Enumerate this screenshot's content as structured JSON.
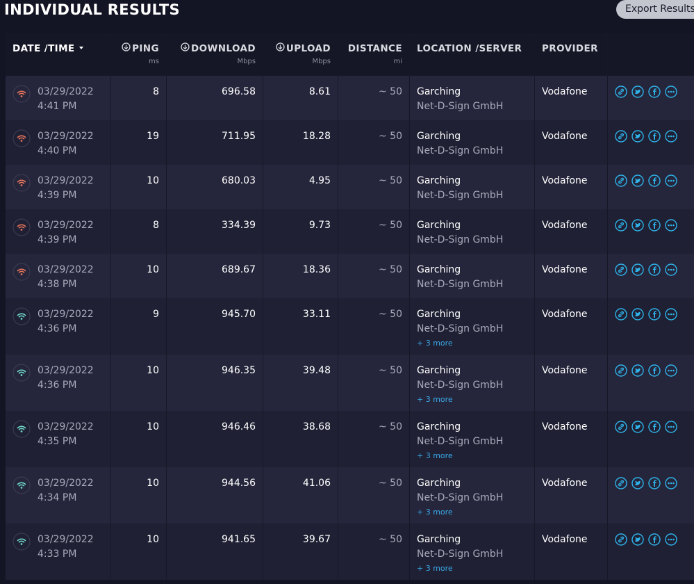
{
  "header": {
    "title": "INDIVIDUAL RESULTS",
    "export_button": "Export Results"
  },
  "table": {
    "columns": [
      {
        "label": "DATE /TIME",
        "unit": null
      },
      {
        "label": "PING",
        "unit": "ms"
      },
      {
        "label": "DOWNLOAD",
        "unit": "Mbps"
      },
      {
        "label": "UPLOAD",
        "unit": "Mbps"
      },
      {
        "label": "DISTANCE",
        "unit": "mi"
      },
      {
        "label": "LOCATION /SERVER",
        "unit": null
      },
      {
        "label": "PROVIDER",
        "unit": null
      }
    ],
    "rows": [
      {
        "date": "03/29/2022",
        "time": "4:41 PM",
        "ping": "8",
        "download": "696.58",
        "upload": "8.61",
        "distance": "~ 50",
        "location": "Garching",
        "server": "Net-D-Sign GmbH",
        "provider": "Vodafone",
        "icon_color": "#e8755c"
      },
      {
        "date": "03/29/2022",
        "time": "4:40 PM",
        "ping": "19",
        "download": "711.95",
        "upload": "18.28",
        "distance": "~ 50",
        "location": "Garching",
        "server": "Net-D-Sign GmbH",
        "provider": "Vodafone",
        "icon_color": "#e8755c"
      },
      {
        "date": "03/29/2022",
        "time": "4:39 PM",
        "ping": "10",
        "download": "680.03",
        "upload": "4.95",
        "distance": "~ 50",
        "location": "Garching",
        "server": "Net-D-Sign GmbH",
        "provider": "Vodafone",
        "icon_color": "#e8755c"
      },
      {
        "date": "03/29/2022",
        "time": "4:39 PM",
        "ping": "8",
        "download": "334.39",
        "upload": "9.73",
        "distance": "~ 50",
        "location": "Garching",
        "server": "Net-D-Sign GmbH",
        "provider": "Vodafone",
        "icon_color": "#e8755c"
      },
      {
        "date": "03/29/2022",
        "time": "4:38 PM",
        "ping": "10",
        "download": "689.67",
        "upload": "18.36",
        "distance": "~ 50",
        "location": "Garching",
        "server": "Net-D-Sign GmbH",
        "provider": "Vodafone",
        "icon_color": "#e8755c"
      },
      {
        "date": "03/29/2022",
        "time": "4:36 PM",
        "ping": "9",
        "download": "945.70",
        "upload": "33.11",
        "distance": "~ 50",
        "location": "Garching",
        "server": "Net-D-Sign GmbH",
        "more": "+ 3 more",
        "provider": "Vodafone",
        "icon_color": "#6fd8c9"
      },
      {
        "date": "03/29/2022",
        "time": "4:36 PM",
        "ping": "10",
        "download": "946.35",
        "upload": "39.48",
        "distance": "~ 50",
        "location": "Garching",
        "server": "Net-D-Sign GmbH",
        "more": "+ 3 more",
        "provider": "Vodafone",
        "icon_color": "#6fd8c9"
      },
      {
        "date": "03/29/2022",
        "time": "4:35 PM",
        "ping": "10",
        "download": "946.46",
        "upload": "38.68",
        "distance": "~ 50",
        "location": "Garching",
        "server": "Net-D-Sign GmbH",
        "more": "+ 3 more",
        "provider": "Vodafone",
        "icon_color": "#6fd8c9"
      },
      {
        "date": "03/29/2022",
        "time": "4:34 PM",
        "ping": "10",
        "download": "944.56",
        "upload": "41.06",
        "distance": "~ 50",
        "location": "Garching",
        "server": "Net-D-Sign GmbH",
        "more": "+ 3 more",
        "provider": "Vodafone",
        "icon_color": "#6fd8c9"
      },
      {
        "date": "03/29/2022",
        "time": "4:33 PM",
        "ping": "10",
        "download": "941.65",
        "upload": "39.67",
        "distance": "~ 50",
        "location": "Garching",
        "server": "Net-D-Sign GmbH",
        "more": "+ 3 more",
        "provider": "Vodafone",
        "icon_color": "#6fd8c9"
      }
    ]
  }
}
